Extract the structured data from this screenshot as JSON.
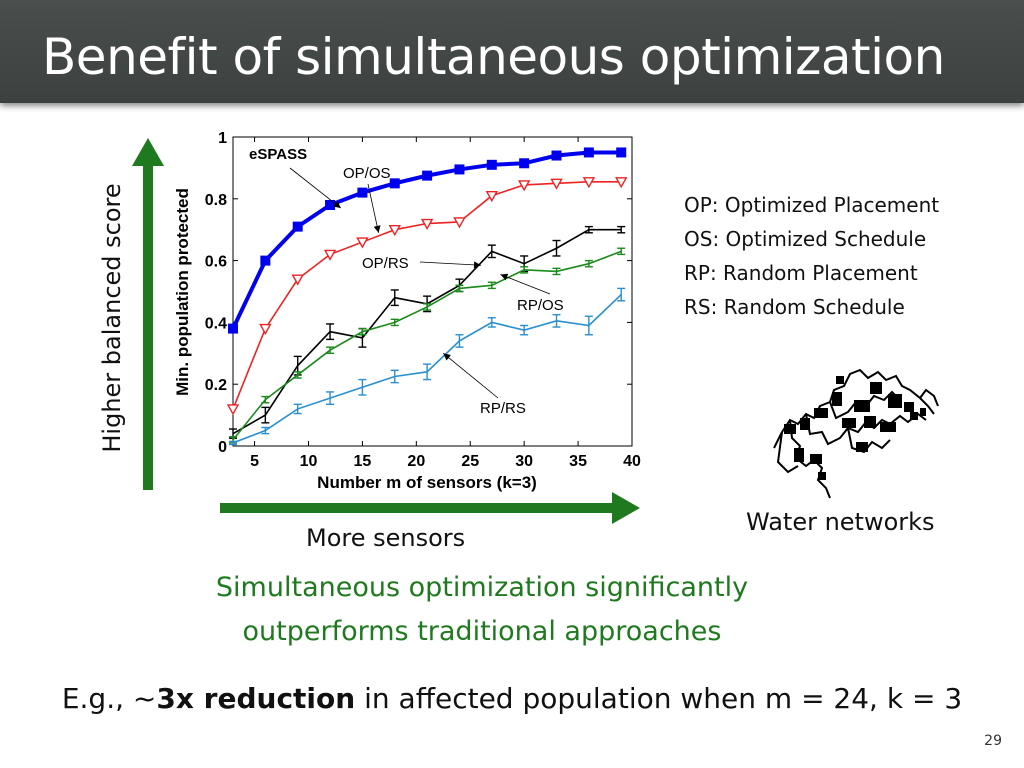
{
  "slide": {
    "title": "Benefit of simultaneous optimization",
    "y_note": "Higher balanced score",
    "x_note": "More sensors",
    "network_label": "Water networks",
    "conclusion": [
      "Simultaneous optimization significantly",
      "outperforms traditional approaches"
    ],
    "example": {
      "prefix": "E.g., ~",
      "bold": "3x reduction",
      "suffix": " in affected population when m = 24, k = 3"
    },
    "page_number": "29",
    "accent_green": "#1f7a1f"
  },
  "legend_text": [
    "OP: Optimized Placement",
    "OS: Optimized Schedule",
    "RP: Random Placement",
    "RS: Random Schedule"
  ],
  "chart_data": {
    "type": "line",
    "xlabel": "Number m of sensors (k=3)",
    "ylabel": "Min. population protected",
    "xlim": [
      3,
      40
    ],
    "ylim": [
      0,
      1
    ],
    "xticks": [
      5,
      10,
      15,
      20,
      25,
      30,
      35,
      40
    ],
    "yticks": [
      0,
      0.2,
      0.4,
      0.6,
      0.8,
      1
    ],
    "ytick_labels": [
      "0",
      "0.2",
      "0.4",
      "0.6",
      "0.8",
      "1"
    ],
    "series": [
      {
        "name": "eSPASS",
        "color": "#0000ee",
        "marker": "square",
        "x": [
          3,
          6,
          9,
          12,
          15,
          18,
          21,
          24,
          27,
          30,
          33,
          36,
          39
        ],
        "y": [
          0.38,
          0.6,
          0.71,
          0.78,
          0.82,
          0.85,
          0.875,
          0.895,
          0.91,
          0.915,
          0.94,
          0.95,
          0.95
        ]
      },
      {
        "name": "OP/OS",
        "color": "#ee2222",
        "marker": "triangle-down",
        "x": [
          3,
          6,
          9,
          12,
          15,
          18,
          21,
          24,
          27,
          30,
          33,
          36,
          39
        ],
        "y": [
          0.12,
          0.38,
          0.54,
          0.62,
          0.66,
          0.7,
          0.72,
          0.725,
          0.81,
          0.845,
          0.85,
          0.855,
          0.855
        ]
      },
      {
        "name": "OP/RS",
        "color": "#000000",
        "marker": "errorbar",
        "x": [
          3,
          6,
          9,
          12,
          15,
          18,
          21,
          24,
          27,
          30,
          33,
          36,
          39
        ],
        "y": [
          0.04,
          0.1,
          0.26,
          0.37,
          0.35,
          0.48,
          0.46,
          0.52,
          0.63,
          0.59,
          0.64,
          0.7,
          0.7
        ],
        "err": [
          0.015,
          0.025,
          0.03,
          0.025,
          0.03,
          0.025,
          0.025,
          0.02,
          0.02,
          0.025,
          0.025,
          0.01,
          0.01
        ]
      },
      {
        "name": "RP/OS",
        "color": "#1a8a1a",
        "marker": "errorbar",
        "x": [
          3,
          6,
          9,
          12,
          15,
          18,
          21,
          24,
          27,
          30,
          33,
          36,
          39
        ],
        "y": [
          0.02,
          0.15,
          0.23,
          0.31,
          0.37,
          0.4,
          0.45,
          0.51,
          0.52,
          0.57,
          0.565,
          0.59,
          0.63
        ],
        "err": [
          0.01,
          0.01,
          0.01,
          0.01,
          0.01,
          0.01,
          0.01,
          0.01,
          0.01,
          0.01,
          0.01,
          0.01,
          0.01
        ]
      },
      {
        "name": "RP/RS",
        "color": "#2a8fd0",
        "marker": "errorbar",
        "x": [
          3,
          6,
          9,
          12,
          15,
          18,
          21,
          24,
          27,
          30,
          33,
          36,
          39
        ],
        "y": [
          0.01,
          0.05,
          0.12,
          0.155,
          0.19,
          0.225,
          0.24,
          0.34,
          0.4,
          0.375,
          0.405,
          0.39,
          0.49
        ],
        "err": [
          0.005,
          0.01,
          0.015,
          0.02,
          0.025,
          0.02,
          0.025,
          0.02,
          0.015,
          0.015,
          0.02,
          0.03,
          0.02
        ]
      }
    ],
    "annotations": [
      {
        "label": "eSPASS",
        "series": 0,
        "point": [
          13,
          0.77
        ],
        "bold": true
      },
      {
        "label": "OP/OS",
        "series": 1,
        "point": [
          16.5,
          0.69
        ],
        "bold": false
      },
      {
        "label": "OP/RS",
        "series": 2,
        "point": [
          26,
          0.585
        ],
        "bold": false
      },
      {
        "label": "RP/OS",
        "series": 3,
        "point": [
          27.8,
          0.555
        ],
        "bold": false
      },
      {
        "label": "RP/RS",
        "series": 4,
        "point": [
          22.5,
          0.3
        ],
        "bold": false
      }
    ]
  }
}
